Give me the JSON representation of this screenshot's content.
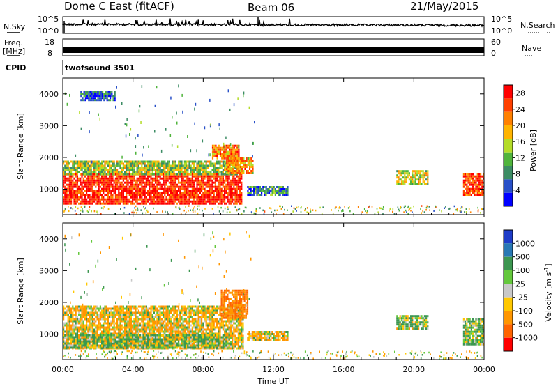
{
  "header": {
    "radar_title": "Dome C East (fitACF)",
    "beam": "Beam 06",
    "date": "21/May/2015"
  },
  "top_panels": {
    "nsky_label": "N.Sky",
    "nsky_ticks": [
      "10^5",
      "10^0"
    ],
    "nsearch_label": "N.Search",
    "nsearch_ticks": [
      "10^5",
      "10^0"
    ],
    "freq_label_line1": "Freq.",
    "freq_label_line2": "[MHz]",
    "freq_ticks": [
      "18",
      "8"
    ],
    "nave_label": "Nave",
    "nave_ticks": [
      "60",
      "0"
    ],
    "cpid_label": "CPID",
    "cpid_value": "twofsound 3501"
  },
  "time_axis": {
    "ticks": [
      "00:00",
      "04:00",
      "08:00",
      "12:00",
      "16:00",
      "20:00",
      "00:00"
    ],
    "label": "Time UT"
  },
  "colors": {
    "power_scale": [
      "#0000ff",
      "#2850c8",
      "#3c8c64",
      "#50b43c",
      "#b4dc28",
      "#ffb400",
      "#ff8000",
      "#ff4000",
      "#ff0000"
    ],
    "velocity_scale": [
      "#1e3cc8",
      "#2878b4",
      "#3c9650",
      "#64c83c",
      "#c8c8c8",
      "#ffc800",
      "#ff9600",
      "#ff6400",
      "#ff0000"
    ]
  },
  "chart_data": [
    {
      "type": "heatmap",
      "panel": "power",
      "ylabel": "Slant Range [km]",
      "yticks": [
        "1000",
        "2000",
        "3000",
        "4000"
      ],
      "ylim": [
        200,
        4500
      ],
      "xlim_hours": [
        0,
        24
      ],
      "colorbar_label": "Power [dB]",
      "colorbar_ticks": [
        "4",
        "8",
        "12",
        "16",
        "20",
        "24",
        "28"
      ],
      "colorbar_range": [
        0,
        30
      ],
      "regions": [
        {
          "t": [
            0,
            10.2
          ],
          "r": [
            550,
            1500
          ],
          "value": 28
        },
        {
          "t": [
            0,
            10.0
          ],
          "r": [
            1500,
            1900
          ],
          "value": 14
        },
        {
          "t": [
            9.3,
            10.8
          ],
          "r": [
            1500,
            2000
          ],
          "value": 20
        },
        {
          "t": [
            10.5,
            12.8
          ],
          "r": [
            800,
            1100
          ],
          "value": 8
        },
        {
          "t": [
            8.5,
            10.0
          ],
          "r": [
            2000,
            2400
          ],
          "value": 22
        },
        {
          "t": [
            19.0,
            20.8
          ],
          "r": [
            1200,
            1600
          ],
          "value": 16
        },
        {
          "t": [
            22.8,
            24.0
          ],
          "r": [
            800,
            1500
          ],
          "value": 26
        },
        {
          "t": [
            1.0,
            3.0
          ],
          "r": [
            3800,
            4100
          ],
          "value": 6
        }
      ]
    },
    {
      "type": "heatmap",
      "panel": "velocity",
      "ylabel": "Slant Range [km]",
      "yticks": [
        "1000",
        "2000",
        "3000",
        "4000"
      ],
      "ylim": [
        200,
        4500
      ],
      "xlim_hours": [
        0,
        24
      ],
      "colorbar_label": "Velocity [m s^-1]",
      "colorbar_ticks": [
        "1000",
        "500",
        "100",
        "25",
        "-25",
        "-100",
        "-500",
        "-1000"
      ],
      "regions": [
        {
          "t": [
            0,
            10.3
          ],
          "r": [
            550,
            1900
          ],
          "value": -100
        },
        {
          "t": [
            0,
            9.5
          ],
          "r": [
            550,
            1000
          ],
          "value": 100
        },
        {
          "t": [
            9.0,
            10.5
          ],
          "r": [
            1500,
            2400
          ],
          "value": -500
        },
        {
          "t": [
            10.5,
            12.8
          ],
          "r": [
            800,
            1100
          ],
          "value": -100
        },
        {
          "t": [
            19.0,
            20.8
          ],
          "r": [
            1200,
            1600
          ],
          "value": 100
        },
        {
          "t": [
            22.8,
            24.0
          ],
          "r": [
            700,
            1500
          ],
          "value": 100
        }
      ]
    }
  ]
}
